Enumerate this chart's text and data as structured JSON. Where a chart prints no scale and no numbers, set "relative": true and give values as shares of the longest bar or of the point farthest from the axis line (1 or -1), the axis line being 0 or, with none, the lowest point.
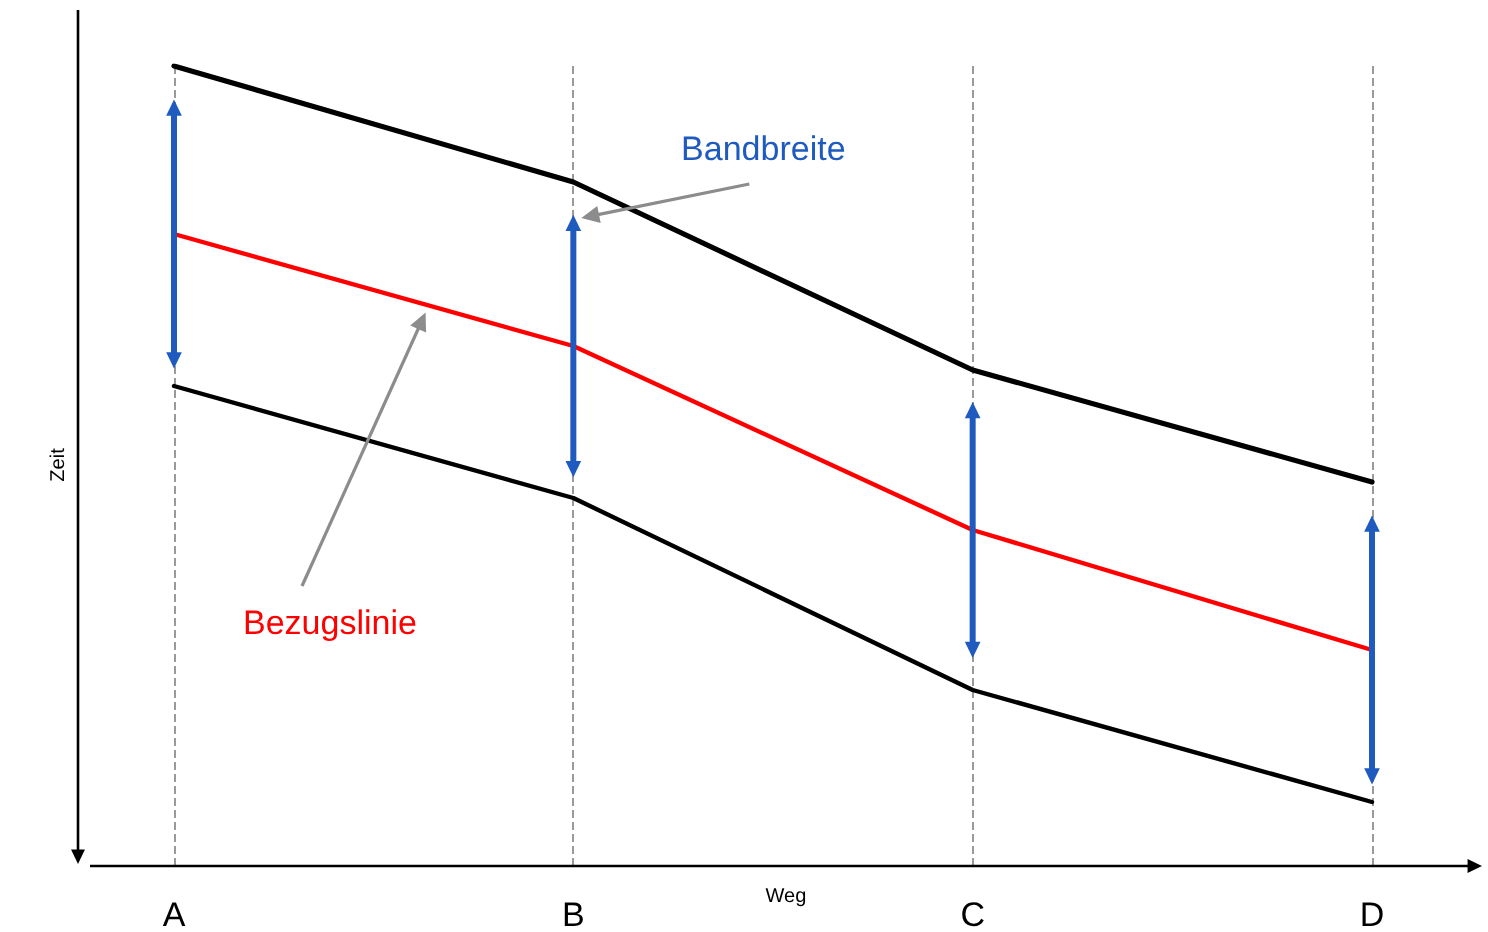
{
  "chart_data": {
    "type": "line",
    "relative": true,
    "xlabel": "Weg",
    "ylabel": "Zeit",
    "categories": [
      "A",
      "B",
      "C",
      "D"
    ],
    "series": [
      {
        "color": "#000000",
        "values": [
          1,
          0.855,
          0.62,
          0.48
        ]
      },
      {
        "color": "#ff0000",
        "values": [
          0.79,
          0.65,
          0.42,
          0.27
        ]
      },
      {
        "color": "#000000",
        "values": [
          0.6,
          0.46,
          0.22,
          0.08
        ]
      }
    ],
    "annotations": [
      "Bandbreite",
      "Bezugslinie"
    ],
    "grid": "x",
    "marker": "none",
    "line_style": "solid"
  }
}
